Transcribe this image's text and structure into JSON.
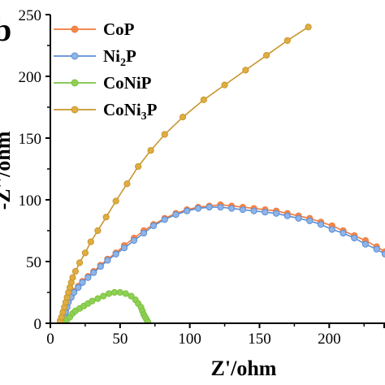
{
  "panel_label": "b",
  "chart_data": {
    "type": "line",
    "xlabel": "Z'/ohm",
    "ylabel": "-Z''/ohm",
    "xlim": [
      0,
      240
    ],
    "ylim": [
      0,
      250
    ],
    "xticks": [
      0,
      50,
      100,
      150,
      200
    ],
    "yticks": [
      0,
      50,
      100,
      150,
      200,
      250
    ],
    "grid": false,
    "legend_position": "top-left",
    "series": [
      {
        "name": "CoP",
        "legend_text": "CoP",
        "legend_sub": "",
        "legend_suffix": "",
        "color": "#f07a3c",
        "marker_fill": "#f5874a",
        "x": [
          9,
          10,
          11,
          12,
          13,
          15,
          17,
          20,
          23,
          27,
          31,
          36,
          41,
          47,
          53,
          60,
          67,
          74,
          82,
          90,
          98,
          106,
          114,
          122,
          130,
          138,
          146,
          154,
          162,
          170,
          178,
          186,
          194,
          202,
          210,
          218,
          226,
          234,
          240
        ],
        "y": [
          2,
          6,
          10,
          14,
          18,
          22,
          26,
          30,
          34,
          38,
          42,
          47,
          52,
          57,
          63,
          69,
          75,
          80,
          85,
          89,
          92,
          94,
          95,
          96,
          95,
          94,
          93,
          92,
          91,
          89,
          87,
          85,
          82,
          79,
          75,
          71,
          67,
          62,
          58
        ]
      },
      {
        "name": "Ni2P",
        "legend_text": "Ni",
        "legend_sub": "2",
        "legend_suffix": "P",
        "color": "#5b8fd6",
        "marker_fill": "#8fb4e8",
        "x": [
          9,
          10,
          11,
          12,
          13,
          15,
          17,
          20,
          23,
          27,
          31,
          36,
          41,
          47,
          53,
          60,
          67,
          74,
          82,
          90,
          98,
          106,
          114,
          122,
          130,
          138,
          146,
          154,
          162,
          170,
          178,
          186,
          194,
          202,
          210,
          218,
          226,
          234,
          240
        ],
        "y": [
          2,
          5,
          9,
          13,
          17,
          21,
          25,
          29,
          33,
          37,
          41,
          46,
          51,
          56,
          61,
          67,
          73,
          79,
          84,
          88,
          91,
          93,
          94,
          94,
          93,
          92,
          91,
          90,
          89,
          87,
          85,
          83,
          80,
          76,
          73,
          69,
          64,
          60,
          56
        ]
      },
      {
        "name": "CoNiP",
        "legend_text": "CoNiP",
        "legend_sub": "",
        "legend_suffix": "",
        "color": "#7cc142",
        "marker_fill": "#8fd153",
        "x": [
          10,
          12,
          14,
          16,
          18,
          21,
          24,
          27,
          30,
          34,
          38,
          42,
          46,
          50,
          54,
          58,
          61,
          63,
          65,
          66,
          67,
          68,
          69,
          70
        ],
        "y": [
          1,
          3,
          5,
          8,
          10,
          12,
          14,
          16,
          18,
          20,
          22,
          24,
          25,
          25,
          24,
          22,
          19,
          16,
          13,
          10,
          7,
          5,
          3,
          1
        ]
      },
      {
        "name": "CoNi3P",
        "legend_text": "CoNi",
        "legend_sub": "3",
        "legend_suffix": "P",
        "color": "#c8962e",
        "marker_fill": "#e0ad40",
        "x": [
          7,
          8,
          9,
          10,
          11,
          12,
          13,
          14,
          15,
          16,
          18,
          21,
          25,
          29,
          34,
          40,
          47,
          55,
          63,
          72,
          82,
          95,
          110,
          125,
          140,
          155,
          170,
          185
        ],
        "y": [
          2,
          5,
          9,
          13,
          17,
          21,
          25,
          29,
          33,
          37,
          42,
          49,
          57,
          66,
          75,
          86,
          99,
          113,
          127,
          140,
          153,
          167,
          181,
          193,
          205,
          217,
          229,
          240
        ]
      }
    ]
  }
}
